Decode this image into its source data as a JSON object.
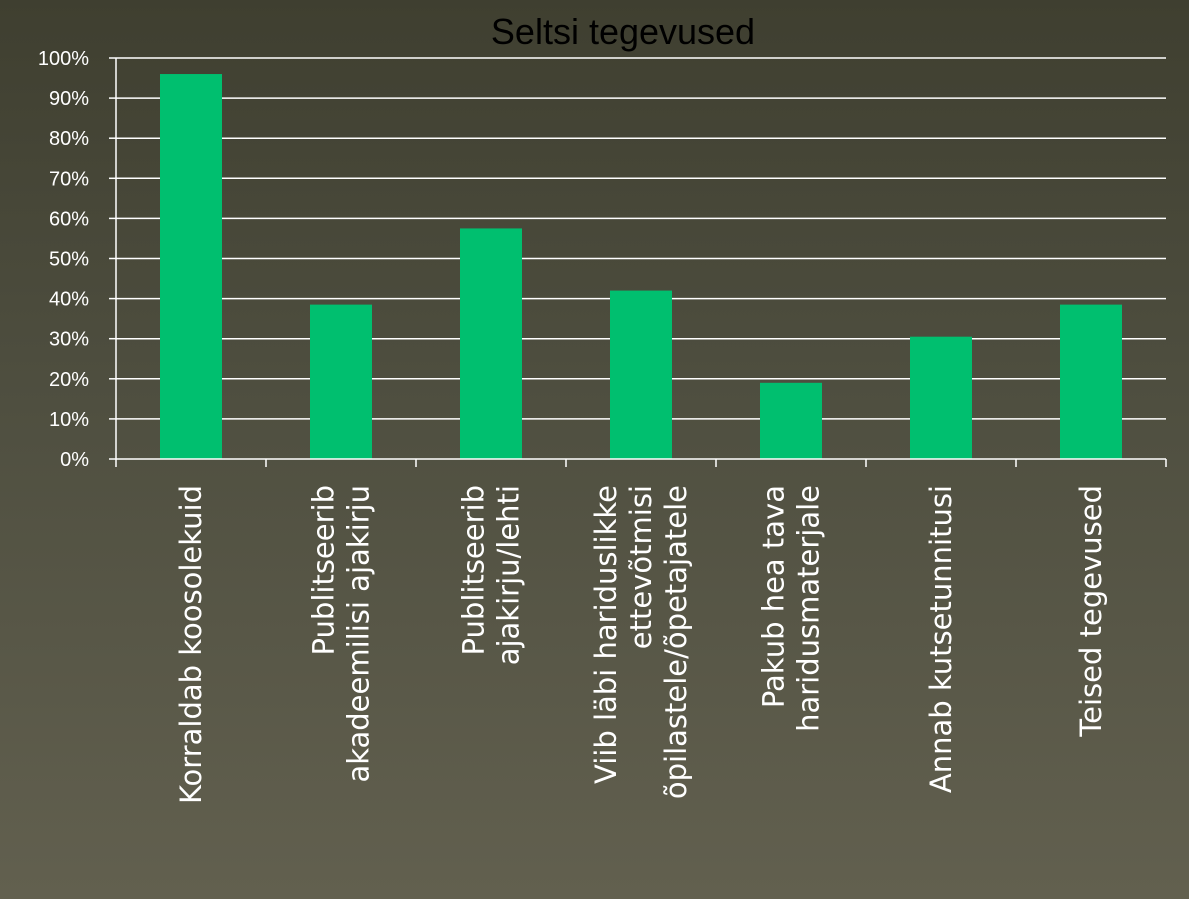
{
  "chart_data": {
    "type": "bar",
    "title": "Seltsi tegevused",
    "categories": [
      [
        "Korraldab koosolekuid"
      ],
      [
        "Publitseerib",
        "akadeemilisi ajakirju"
      ],
      [
        "Publitseerib",
        "ajakirju/lehti"
      ],
      [
        "Viib läbi hariduslikke",
        "ettevõtmisi",
        "õpilastele/õpetajatele"
      ],
      [
        "Pakub hea tava",
        "haridusmaterjale"
      ],
      [
        "Annab kutsetunnitusi"
      ],
      [
        "Teised tegevused"
      ]
    ],
    "values": [
      96,
      38.5,
      57.5,
      42,
      19,
      30.5,
      38.5
    ],
    "ylim": [
      0,
      100
    ],
    "yticks": [
      "0%",
      "10%",
      "20%",
      "30%",
      "40%",
      "50%",
      "60%",
      "70%",
      "80%",
      "90%",
      "100%"
    ],
    "grid": true,
    "legend": "none",
    "colors": {
      "bar": "#00bf6f",
      "grid": "#ffffff",
      "axis": "#ffffff",
      "title": "#000000"
    }
  }
}
